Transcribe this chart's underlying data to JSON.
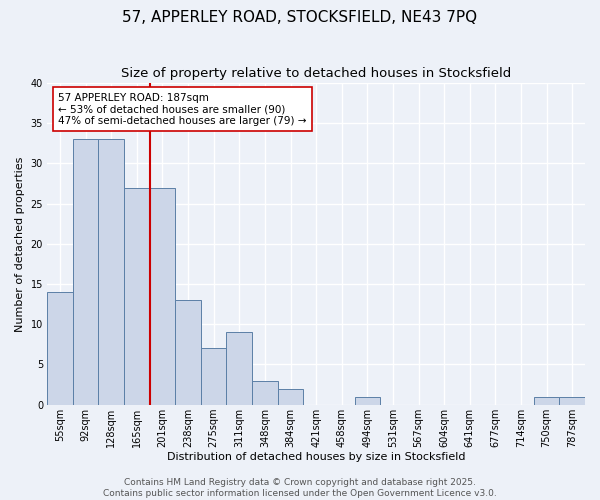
{
  "title": "57, APPERLEY ROAD, STOCKSFIELD, NE43 7PQ",
  "subtitle": "Size of property relative to detached houses in Stocksfield",
  "xlabel": "Distribution of detached houses by size in Stocksfield",
  "ylabel": "Number of detached properties",
  "bar_labels": [
    "55sqm",
    "92sqm",
    "128sqm",
    "165sqm",
    "201sqm",
    "238sqm",
    "275sqm",
    "311sqm",
    "348sqm",
    "384sqm",
    "421sqm",
    "458sqm",
    "494sqm",
    "531sqm",
    "567sqm",
    "604sqm",
    "641sqm",
    "677sqm",
    "714sqm",
    "750sqm",
    "787sqm"
  ],
  "bar_values": [
    14,
    33,
    33,
    27,
    27,
    13,
    7,
    9,
    3,
    2,
    0,
    0,
    1,
    0,
    0,
    0,
    0,
    0,
    0,
    1,
    1
  ],
  "bar_color": "#ccd6e8",
  "bar_edge_color": "#5b7fa6",
  "background_color": "#edf1f8",
  "grid_color": "#ffffff",
  "vline_color": "#cc0000",
  "vline_position": 3.5,
  "annotation_text": "57 APPERLEY ROAD: 187sqm\n← 53% of detached houses are smaller (90)\n47% of semi-detached houses are larger (79) →",
  "annotation_box_facecolor": "#ffffff",
  "annotation_box_edgecolor": "#cc0000",
  "ylim": [
    0,
    40
  ],
  "yticks": [
    0,
    5,
    10,
    15,
    20,
    25,
    30,
    35,
    40
  ],
  "footer_line1": "Contains HM Land Registry data © Crown copyright and database right 2025.",
  "footer_line2": "Contains public sector information licensed under the Open Government Licence v3.0.",
  "title_fontsize": 11,
  "subtitle_fontsize": 9.5,
  "axis_label_fontsize": 8,
  "tick_fontsize": 7,
  "annotation_fontsize": 7.5,
  "footer_fontsize": 6.5
}
